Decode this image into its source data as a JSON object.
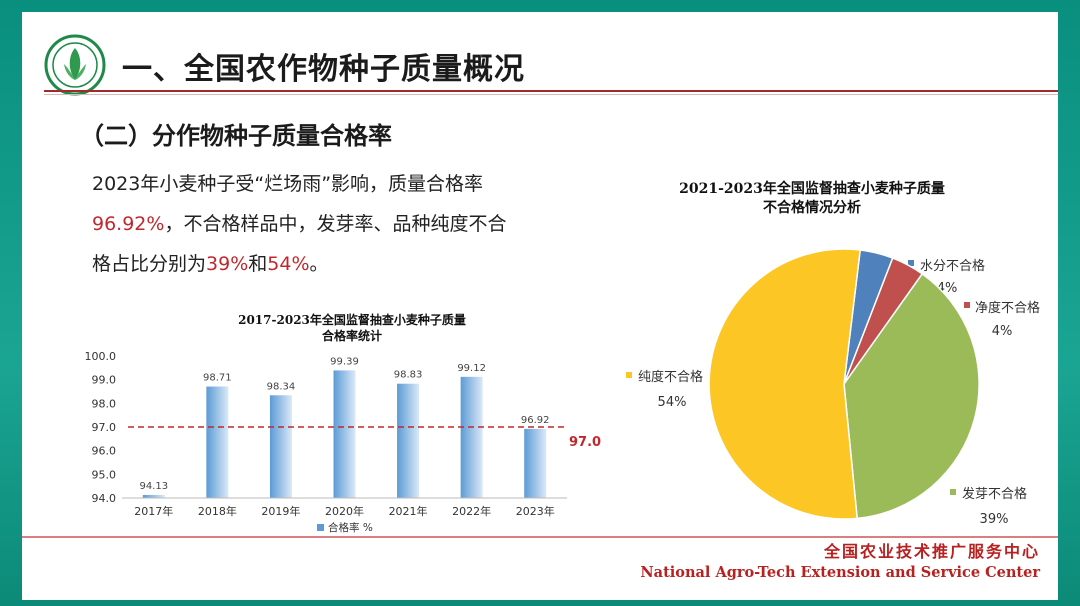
{
  "header": {
    "title": "一、全国农作物种子质量概况",
    "logo_icon": "agro-tech-center-logo-icon"
  },
  "section": {
    "title": "（二）分作物种子质量合格率"
  },
  "body": {
    "line1": "2023年小麦种子受“烂场雨”影响，质量合格率",
    "line2_value": "96.92%",
    "line2_rest": "，不合格样品中，发芽率、品种纯度不合",
    "line3_prefix": "格占比分别为",
    "line3_v1": "39%",
    "line3_and": "和",
    "line3_v2": "54%",
    "line3_end": "。"
  },
  "footer": {
    "cn": "全国农业技术推广服务中心",
    "en": "National Agro-Tech Extension and Service Center"
  },
  "colors": {
    "accent_red": "#c0282d",
    "bar_blue": "#5b9bd5",
    "pie_yellow": "#fcc624",
    "pie_green": "#9bbb59",
    "pie_blue": "#4f81bd",
    "pie_red": "#c0504d"
  },
  "chart_data": [
    {
      "type": "bar",
      "title_line1": "2017-2023年全国监督抽查小麦种子质量",
      "title_line2": "合格率统计",
      "categories": [
        "2017年",
        "2018年",
        "2019年",
        "2020年",
        "2021年",
        "2022年",
        "2023年"
      ],
      "series": [
        {
          "name": "合格率 %",
          "values": [
            94.13,
            98.71,
            98.34,
            99.39,
            98.83,
            99.12,
            96.92
          ]
        }
      ],
      "value_labels": [
        "94.13",
        "98.71",
        "98.34",
        "99.39",
        "98.83",
        "99.12",
        "96.92"
      ],
      "ylim": [
        94.0,
        100.0
      ],
      "yticks": [
        "94.0",
        "95.0",
        "96.0",
        "97.0",
        "98.0",
        "99.0",
        "100.0"
      ],
      "reference_line": {
        "value": 97.0,
        "label": "97.0"
      },
      "legend_position": "bottom"
    },
    {
      "type": "pie",
      "title_line1": "2021-2023年全国监督抽查小麦种子质量",
      "title_line2": "不合格情况分析",
      "slices": [
        {
          "label": "水分不合格",
          "value": 4,
          "pct": "4%"
        },
        {
          "label": "净度不合格",
          "value": 4,
          "pct": "4%"
        },
        {
          "label": "发芽不合格",
          "value": 39,
          "pct": "39%"
        },
        {
          "label": "纯度不合格",
          "value": 54,
          "pct": "54%"
        }
      ]
    }
  ]
}
